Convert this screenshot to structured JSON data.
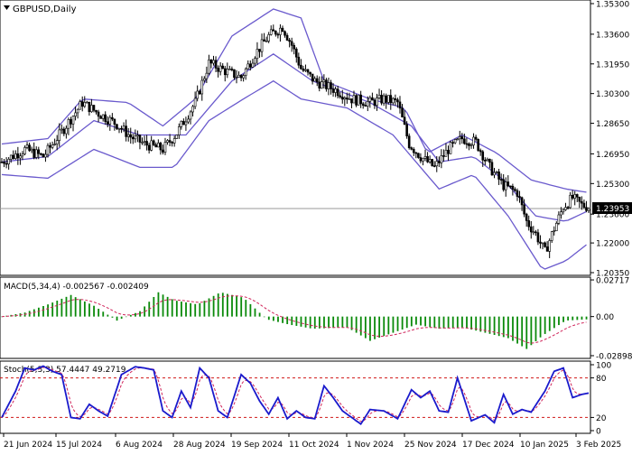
{
  "chart_data": [
    {
      "type": "candlestick",
      "title": "GBPUSD,Daily",
      "last_price": "1.23953",
      "ylim": [
        1.2035,
        1.353
      ],
      "y_ticks": [
        "1.35300",
        "1.33600",
        "1.31950",
        "1.30300",
        "1.28650",
        "1.26950",
        "1.25300",
        "1.23600",
        "1.22000",
        "1.20350"
      ],
      "x_ticks": [
        "21 Jun 2024",
        "15 Jul 2024",
        "6 Aug 2024",
        "28 Aug 2024",
        "19 Sep 2024",
        "11 Oct 2024",
        "1 Nov 2024",
        "25 Nov 2024",
        "17 Dec 2024",
        "10 Jan 2025",
        "3 Feb 2025"
      ],
      "close_path": [
        [
          0,
          1.265
        ],
        [
          10,
          1.272
        ],
        [
          18,
          1.268
        ],
        [
          25,
          1.28
        ],
        [
          35,
          1.298
        ],
        [
          42,
          1.292
        ],
        [
          50,
          1.286
        ],
        [
          56,
          1.279
        ],
        [
          62,
          1.275
        ],
        [
          70,
          1.272
        ],
        [
          76,
          1.281
        ],
        [
          84,
          1.298
        ],
        [
          90,
          1.32
        ],
        [
          98,
          1.315
        ],
        [
          104,
          1.312
        ],
        [
          110,
          1.325
        ],
        [
          116,
          1.335
        ],
        [
          122,
          1.34
        ],
        [
          126,
          1.33
        ],
        [
          130,
          1.317
        ],
        [
          136,
          1.31
        ],
        [
          145,
          1.305
        ],
        [
          152,
          1.3
        ],
        [
          160,
          1.298
        ],
        [
          166,
          1.3
        ],
        [
          172,
          1.298
        ],
        [
          177,
          1.275
        ],
        [
          182,
          1.268
        ],
        [
          188,
          1.262
        ],
        [
          194,
          1.272
        ],
        [
          200,
          1.278
        ],
        [
          206,
          1.276
        ],
        [
          212,
          1.262
        ],
        [
          218,
          1.252
        ],
        [
          224,
          1.248
        ],
        [
          228,
          1.232
        ],
        [
          232,
          1.225
        ],
        [
          236,
          1.215
        ],
        [
          240,
          1.228
        ],
        [
          244,
          1.24
        ],
        [
          248,
          1.245
        ],
        [
          252,
          1.241
        ],
        [
          255,
          1.24
        ]
      ],
      "bands": {
        "upper": [
          [
            0,
            1.275
          ],
          [
            20,
            1.278
          ],
          [
            35,
            1.3
          ],
          [
            55,
            1.298
          ],
          [
            70,
            1.285
          ],
          [
            84,
            1.3
          ],
          [
            100,
            1.335
          ],
          [
            118,
            1.35
          ],
          [
            130,
            1.345
          ],
          [
            140,
            1.31
          ],
          [
            160,
            1.3
          ],
          [
            175,
            1.295
          ],
          [
            185,
            1.27
          ],
          [
            200,
            1.28
          ],
          [
            215,
            1.27
          ],
          [
            230,
            1.255
          ],
          [
            245,
            1.25
          ],
          [
            255,
            1.248
          ]
        ],
        "middle": [
          [
            0,
            1.265
          ],
          [
            20,
            1.268
          ],
          [
            40,
            1.288
          ],
          [
            60,
            1.28
          ],
          [
            80,
            1.28
          ],
          [
            100,
            1.31
          ],
          [
            118,
            1.325
          ],
          [
            135,
            1.31
          ],
          [
            160,
            1.298
          ],
          [
            178,
            1.285
          ],
          [
            190,
            1.265
          ],
          [
            205,
            1.268
          ],
          [
            218,
            1.255
          ],
          [
            232,
            1.235
          ],
          [
            245,
            1.232
          ],
          [
            255,
            1.238
          ]
        ],
        "lower": [
          [
            0,
            1.258
          ],
          [
            20,
            1.256
          ],
          [
            40,
            1.272
          ],
          [
            60,
            1.262
          ],
          [
            75,
            1.262
          ],
          [
            90,
            1.288
          ],
          [
            105,
            1.3
          ],
          [
            118,
            1.31
          ],
          [
            130,
            1.3
          ],
          [
            150,
            1.295
          ],
          [
            170,
            1.28
          ],
          [
            190,
            1.25
          ],
          [
            205,
            1.258
          ],
          [
            220,
            1.235
          ],
          [
            235,
            1.205
          ],
          [
            245,
            1.21
          ],
          [
            255,
            1.22
          ]
        ]
      }
    },
    {
      "type": "bar",
      "title": "MACD(5,34,4) -0.002567 -0.002409",
      "ylim": [
        -0.029,
        0.0272
      ],
      "y_ticks": [
        "0.02717",
        "0.00",
        "-0.028986"
      ],
      "values": [
        [
          0,
          0.0
        ],
        [
          10,
          0.003
        ],
        [
          20,
          0.009
        ],
        [
          30,
          0.016
        ],
        [
          40,
          0.008
        ],
        [
          50,
          -0.003
        ],
        [
          60,
          0.004
        ],
        [
          68,
          0.018
        ],
        [
          75,
          0.012
        ],
        [
          85,
          0.009
        ],
        [
          95,
          0.018
        ],
        [
          105,
          0.014
        ],
        [
          115,
          -0.002
        ],
        [
          125,
          -0.006
        ],
        [
          135,
          -0.009
        ],
        [
          150,
          -0.008
        ],
        [
          160,
          -0.018
        ],
        [
          170,
          -0.012
        ],
        [
          180,
          -0.006
        ],
        [
          190,
          -0.009
        ],
        [
          200,
          -0.008
        ],
        [
          210,
          -0.012
        ],
        [
          220,
          -0.016
        ],
        [
          228,
          -0.024
        ],
        [
          235,
          -0.014
        ],
        [
          245,
          -0.003
        ],
        [
          255,
          -0.002
        ]
      ]
    },
    {
      "type": "line",
      "title": "Stoch(5,3,3) 57.4447 49.2719",
      "ylim": [
        0,
        100
      ],
      "y_ticks": [
        "100",
        "80",
        "20",
        "0"
      ],
      "levels": [
        80,
        20
      ],
      "values": [
        [
          0,
          20
        ],
        [
          6,
          60
        ],
        [
          10,
          95
        ],
        [
          14,
          92
        ],
        [
          18,
          98
        ],
        [
          22,
          90
        ],
        [
          26,
          85
        ],
        [
          30,
          20
        ],
        [
          34,
          18
        ],
        [
          38,
          40
        ],
        [
          42,
          30
        ],
        [
          46,
          22
        ],
        [
          52,
          85
        ],
        [
          58,
          97
        ],
        [
          62,
          95
        ],
        [
          66,
          92
        ],
        [
          70,
          30
        ],
        [
          74,
          20
        ],
        [
          78,
          60
        ],
        [
          82,
          35
        ],
        [
          86,
          95
        ],
        [
          90,
          80
        ],
        [
          94,
          30
        ],
        [
          98,
          20
        ],
        [
          104,
          85
        ],
        [
          108,
          72
        ],
        [
          112,
          45
        ],
        [
          116,
          25
        ],
        [
          120,
          50
        ],
        [
          124,
          18
        ],
        [
          128,
          30
        ],
        [
          132,
          20
        ],
        [
          136,
          18
        ],
        [
          140,
          68
        ],
        [
          144,
          50
        ],
        [
          148,
          30
        ],
        [
          152,
          20
        ],
        [
          156,
          10
        ],
        [
          160,
          32
        ],
        [
          166,
          30
        ],
        [
          172,
          18
        ],
        [
          178,
          62
        ],
        [
          182,
          50
        ],
        [
          186,
          60
        ],
        [
          190,
          30
        ],
        [
          194,
          28
        ],
        [
          198,
          80
        ],
        [
          204,
          15
        ],
        [
          210,
          24
        ],
        [
          214,
          12
        ],
        [
          218,
          55
        ],
        [
          222,
          25
        ],
        [
          226,
          32
        ],
        [
          230,
          28
        ],
        [
          236,
          60
        ],
        [
          240,
          90
        ],
        [
          244,
          95
        ],
        [
          248,
          50
        ],
        [
          252,
          55
        ],
        [
          255,
          57
        ]
      ]
    }
  ]
}
